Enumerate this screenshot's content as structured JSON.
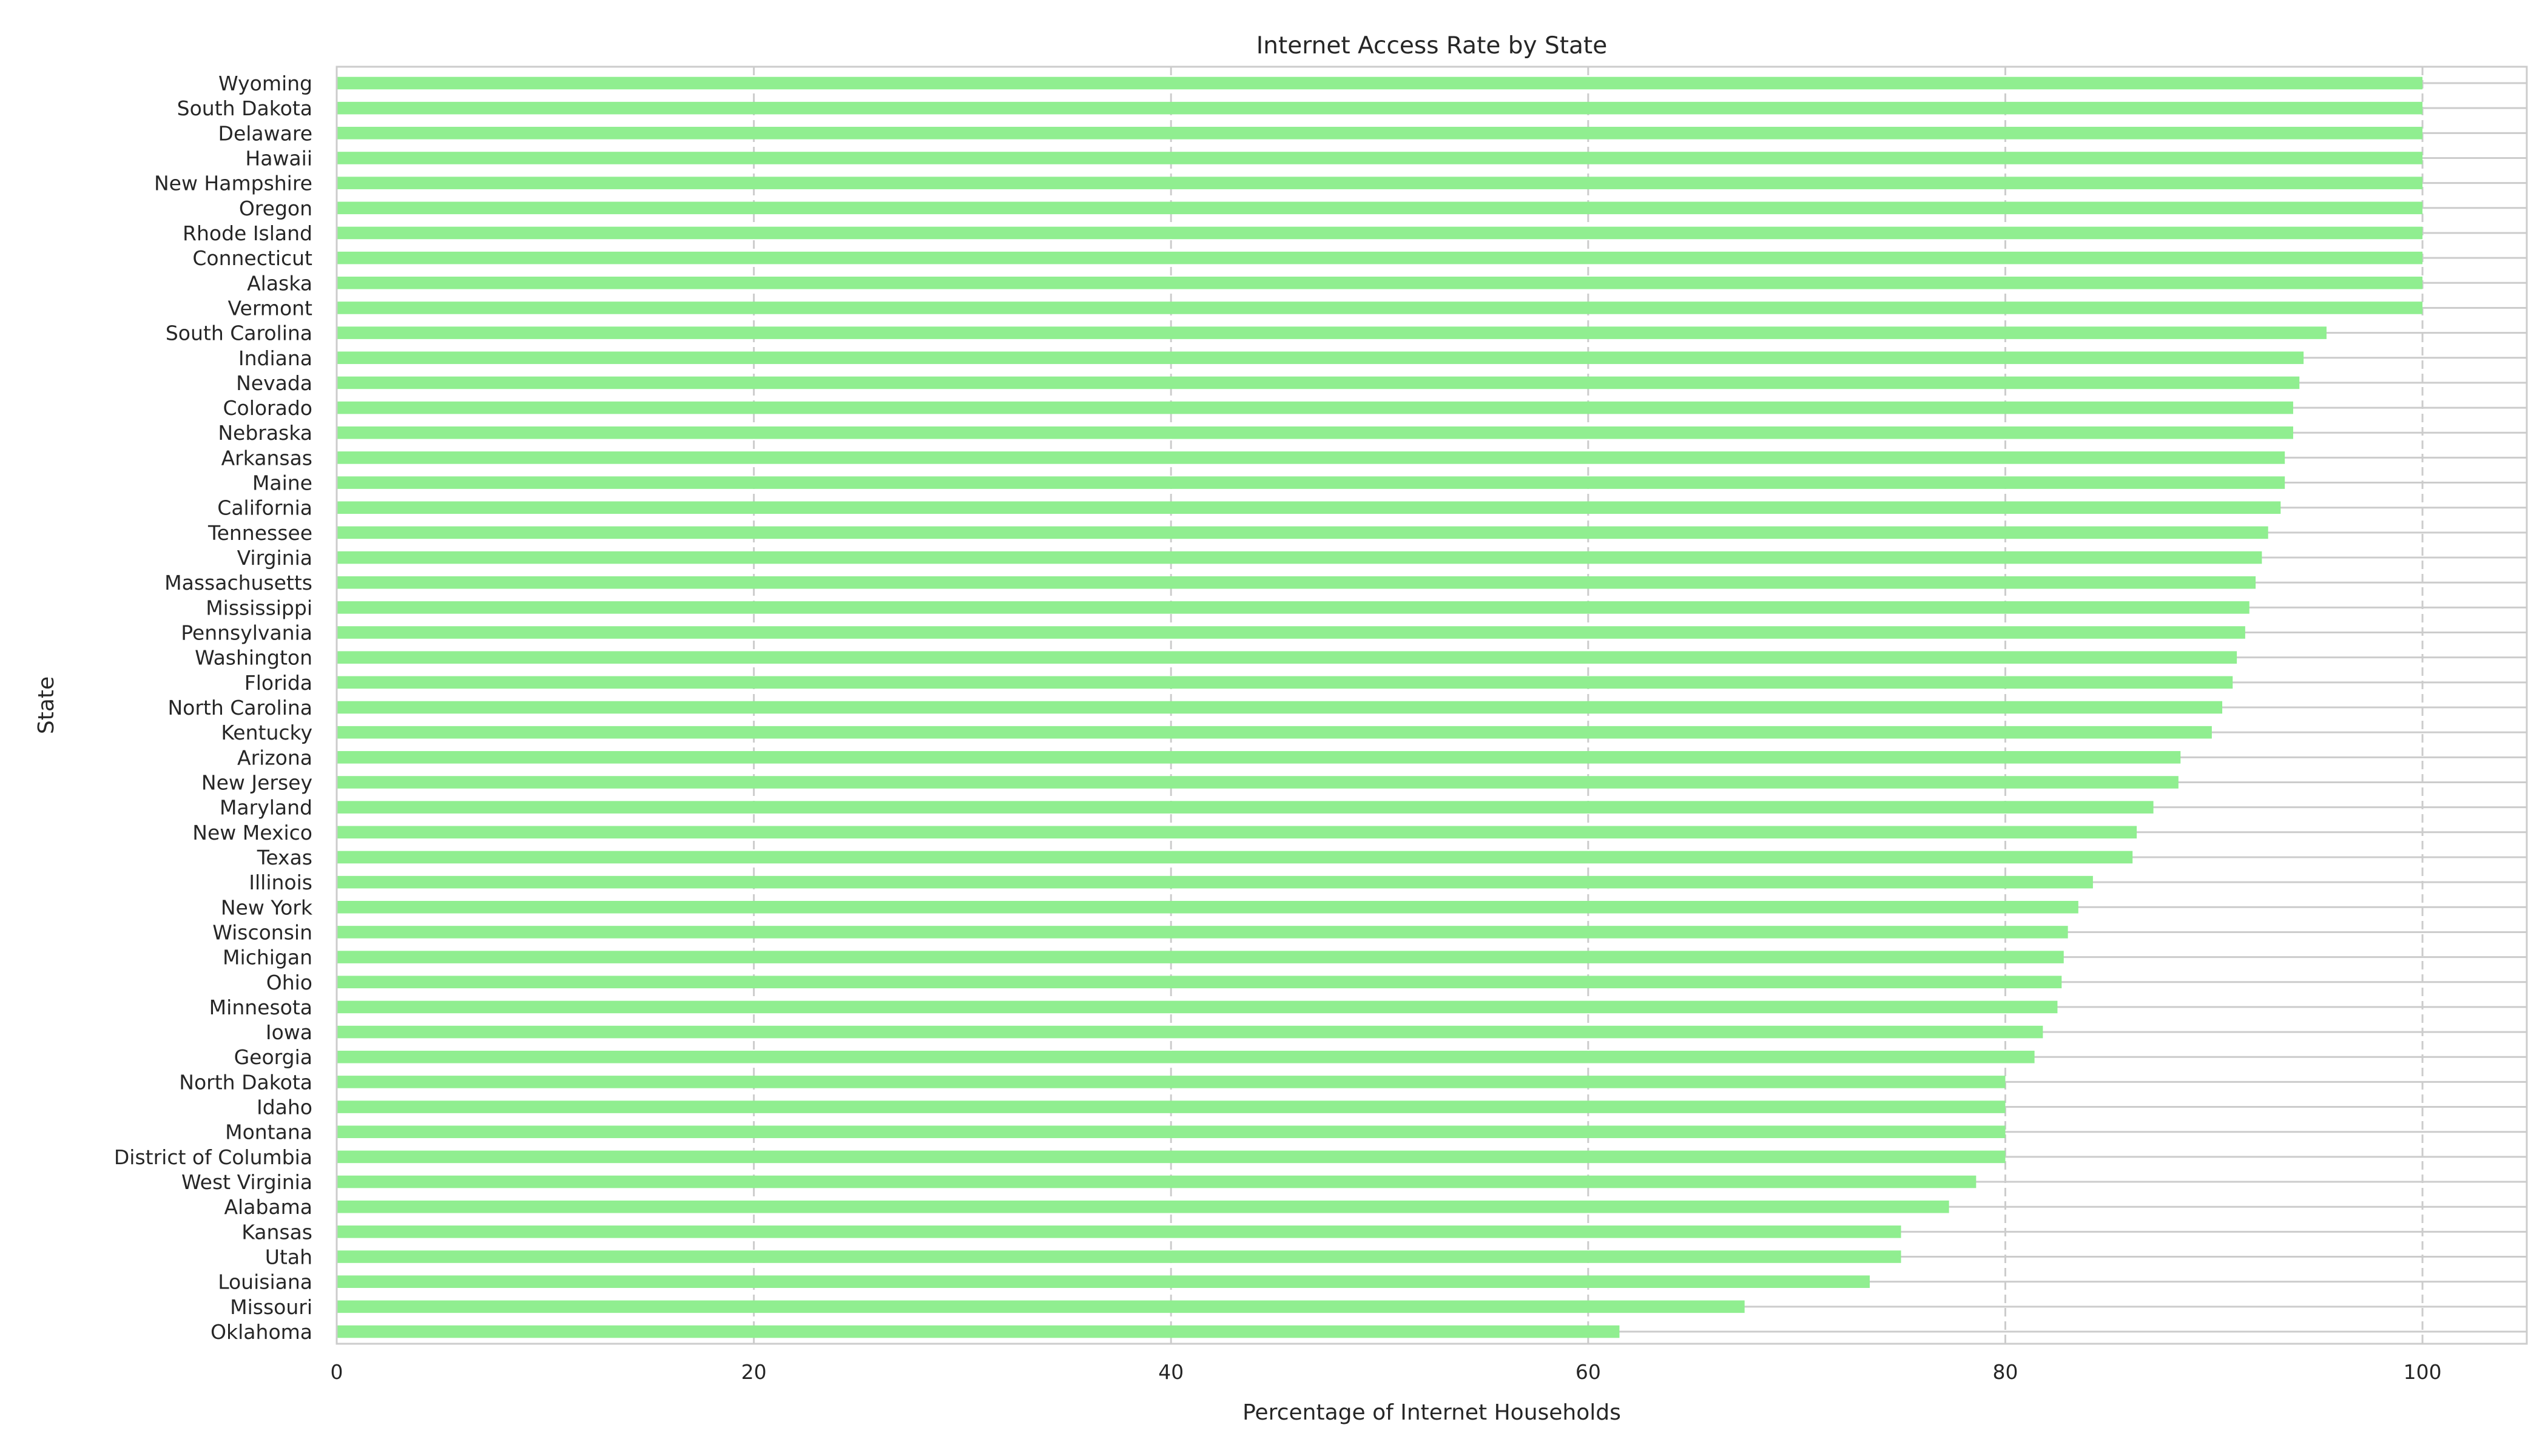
{
  "chart_data": {
    "type": "bar",
    "orientation": "horizontal",
    "title": "Internet Access Rate by State",
    "xlabel": "Percentage of Internet Households",
    "ylabel": "State",
    "xlim": [
      0,
      105
    ],
    "xticks": [
      0,
      20,
      40,
      60,
      80,
      100
    ],
    "grid": true,
    "bar_color": "#90ee90",
    "grid_color": "#cccccc",
    "categories": [
      "Wyoming",
      "South Dakota",
      "Delaware",
      "Hawaii",
      "New Hampshire",
      "Oregon",
      "Rhode Island",
      "Connecticut",
      "Alaska",
      "Vermont",
      "South Carolina",
      "Indiana",
      "Nevada",
      "Colorado",
      "Nebraska",
      "Arkansas",
      "Maine",
      "California",
      "Tennessee",
      "Virginia",
      "Massachusetts",
      "Mississippi",
      "Pennsylvania",
      "Washington",
      "Florida",
      "North Carolina",
      "Kentucky",
      "Arizona",
      "New Jersey",
      "Maryland",
      "New Mexico",
      "Texas",
      "Illinois",
      "New York",
      "Wisconsin",
      "Michigan",
      "Ohio",
      "Minnesota",
      "Iowa",
      "Georgia",
      "North Dakota",
      "Idaho",
      "Montana",
      "District of Columbia",
      "West Virginia",
      "Alabama",
      "Kansas",
      "Utah",
      "Louisiana",
      "Missouri",
      "Oklahoma"
    ],
    "values": [
      100,
      100,
      100,
      100,
      100,
      100,
      100,
      100,
      100,
      100,
      95.4,
      94.3,
      94.1,
      93.8,
      93.8,
      93.4,
      93.4,
      93.2,
      92.6,
      92.3,
      92.0,
      91.7,
      91.5,
      91.1,
      90.9,
      90.4,
      89.9,
      88.4,
      88.3,
      87.1,
      86.3,
      86.1,
      84.2,
      83.5,
      83.0,
      82.8,
      82.7,
      82.5,
      81.8,
      81.4,
      80.0,
      80.0,
      80.0,
      80.0,
      78.6,
      77.3,
      75.0,
      75.0,
      73.5,
      67.5,
      61.5
    ]
  }
}
